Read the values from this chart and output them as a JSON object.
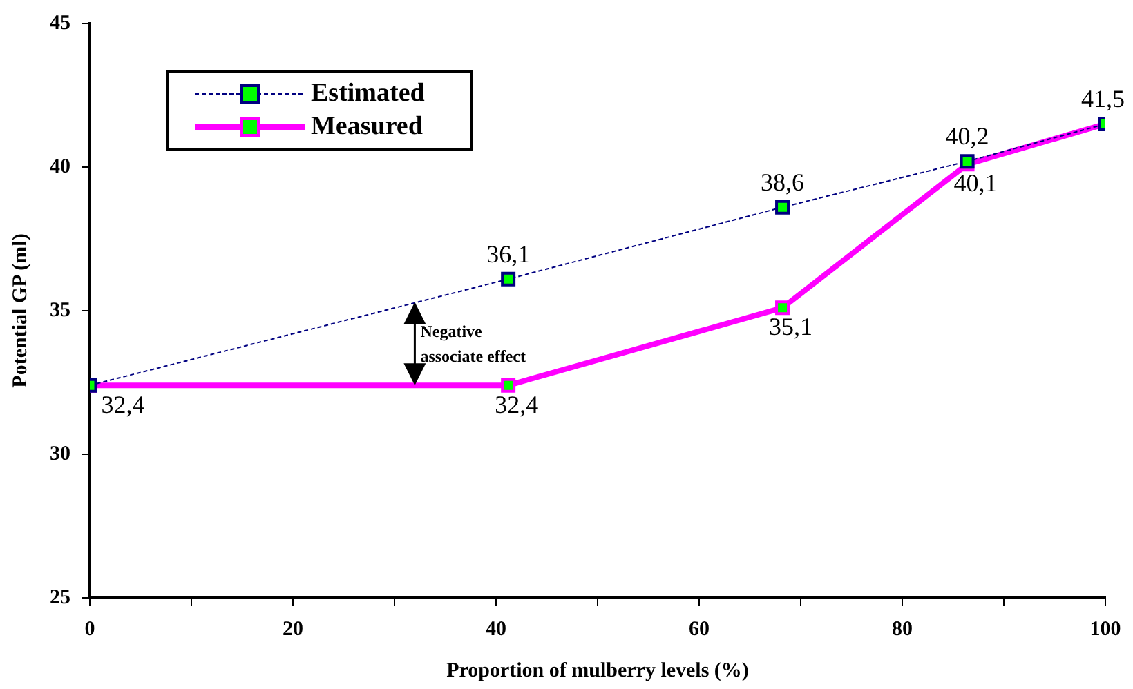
{
  "chart_data": {
    "type": "line",
    "xlabel": "Proportion of mulberry levels (%)",
    "ylabel": "Potential GP (ml)",
    "x": [
      0,
      41.2,
      68.2,
      86.4,
      100
    ],
    "series": [
      {
        "name": "Estimated",
        "color": "#000080",
        "values": [
          32.4,
          36.1,
          38.6,
          40.2,
          41.5
        ],
        "marker": "square",
        "line_style": "dashed",
        "value_labels": [
          null,
          "36,1",
          "38,6",
          "40,2",
          null
        ]
      },
      {
        "name": "Measured",
        "color": "#ff00ff",
        "values": [
          32.4,
          32.4,
          35.1,
          40.1,
          41.5
        ],
        "marker": "square",
        "line_style": "solid",
        "value_labels": [
          "32,4",
          "32,4",
          "35,1",
          "40,1",
          "41,5"
        ]
      }
    ],
    "xlim": [
      0,
      100
    ],
    "xticks": [
      0,
      {
        "value": 10,
        "label": null
      },
      20,
      {
        "value": 30,
        "label": null
      },
      40,
      {
        "value": 50,
        "label": null
      },
      60,
      {
        "value": 70,
        "label": null
      },
      80,
      {
        "value": 90,
        "label": null
      },
      100
    ],
    "ylim": [
      25,
      45
    ],
    "yticks": [
      25,
      30,
      35,
      40,
      45
    ],
    "grid": false,
    "legend": "top left",
    "annotations": [
      {
        "text": "Negative associate effect",
        "x": 32,
        "y": 35.3
      }
    ]
  }
}
